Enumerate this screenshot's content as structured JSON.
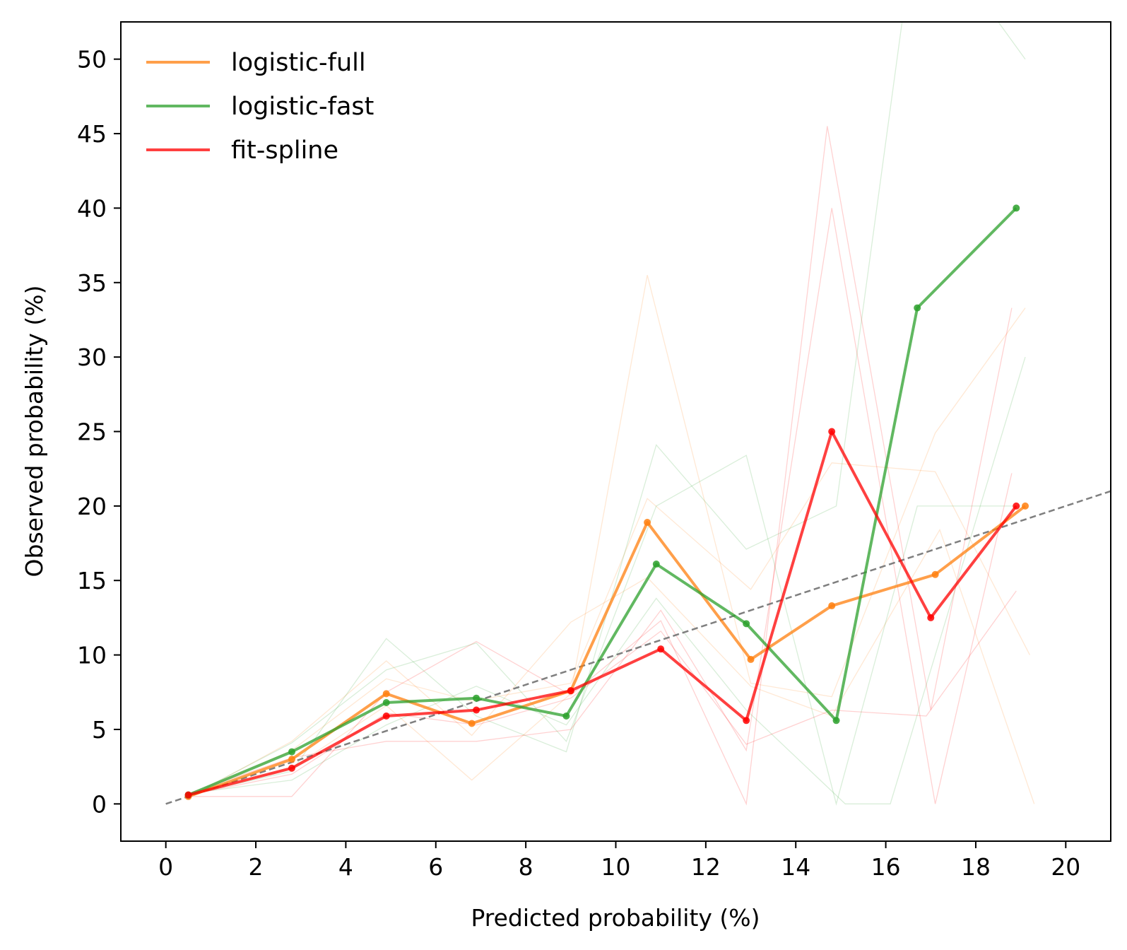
{
  "chart_data": {
    "type": "line",
    "xlabel": "Predicted probability (%)",
    "ylabel": "Observed probability (%)",
    "xlim": [
      -1,
      21
    ],
    "ylim": [
      -2.5,
      52.5
    ],
    "xticks": [
      0,
      2,
      4,
      6,
      8,
      10,
      12,
      14,
      16,
      18,
      20
    ],
    "yticks": [
      0,
      5,
      10,
      15,
      20,
      25,
      30,
      35,
      40,
      45,
      50
    ],
    "legend_position": "top-left",
    "reference_line": {
      "style": "dashed",
      "color": "#7f7f7f",
      "x": [
        0,
        21
      ],
      "y": [
        0,
        21
      ]
    },
    "series": [
      {
        "name": "logistic-full",
        "color": "#ff7f0e",
        "x": [
          0.5,
          2.8,
          4.9,
          6.8,
          9.0,
          10.7,
          13.0,
          14.8,
          17.1,
          19.1
        ],
        "y": [
          0.5,
          3.0,
          7.4,
          5.4,
          7.6,
          18.9,
          9.7,
          13.3,
          15.4,
          20.0
        ]
      },
      {
        "name": "logistic-fast",
        "color": "#2ca02c",
        "x": [
          0.5,
          2.8,
          4.9,
          6.9,
          8.9,
          10.9,
          12.9,
          14.9,
          16.7,
          18.9
        ],
        "y": [
          0.6,
          3.5,
          6.8,
          7.1,
          5.9,
          16.1,
          12.1,
          5.6,
          33.3,
          40.0
        ]
      },
      {
        "name": "fit-spline",
        "color": "#ff0000",
        "x": [
          0.5,
          2.8,
          4.9,
          6.9,
          9.0,
          11.0,
          12.9,
          14.8,
          17.0,
          18.9
        ],
        "y": [
          0.6,
          2.4,
          5.9,
          6.3,
          7.6,
          10.4,
          5.6,
          25.0,
          12.5,
          20.0
        ]
      }
    ],
    "background_series": [
      {
        "color": "#ff7f0e",
        "x": [
          0.5,
          2.8,
          4.9,
          6.8,
          9.0,
          10.7,
          13.0,
          14.8,
          17.1,
          19.2
        ],
        "y": [
          0.5,
          3.6,
          8.4,
          6.9,
          8.1,
          20.5,
          14.4,
          22.9,
          22.3,
          10.0
        ]
      },
      {
        "color": "#ff7f0e",
        "x": [
          0.5,
          2.8,
          4.9,
          6.8,
          9.0,
          10.7,
          13.0,
          14.8,
          17.1,
          19.1
        ],
        "y": [
          0.6,
          2.4,
          6.6,
          1.6,
          7.4,
          35.5,
          8.1,
          7.2,
          24.9,
          33.3
        ]
      },
      {
        "color": "#ff7f0e",
        "x": [
          0.5,
          2.8,
          4.9,
          6.8,
          9.0,
          10.7,
          13.0,
          14.8,
          17.2,
          19.3
        ],
        "y": [
          0.4,
          4.2,
          9.6,
          4.6,
          12.2,
          15.2,
          7.9,
          5.9,
          18.4,
          0.0
        ]
      },
      {
        "color": "#2ca02c",
        "x": [
          0.5,
          2.8,
          4.9,
          6.9,
          8.9,
          10.9,
          12.9,
          14.9,
          16.7,
          19.1
        ],
        "y": [
          0.6,
          2.2,
          11.1,
          5.9,
          3.5,
          24.1,
          17.1,
          20.0,
          60.0,
          50.0
        ]
      },
      {
        "color": "#2ca02c",
        "x": [
          0.5,
          2.8,
          4.9,
          6.9,
          8.9,
          10.9,
          12.9,
          14.9,
          16.7,
          19.0
        ],
        "y": [
          0.5,
          4.1,
          9.0,
          10.8,
          4.2,
          20.0,
          23.4,
          0.0,
          20.0,
          20.0
        ]
      },
      {
        "color": "#2ca02c",
        "x": [
          0.5,
          2.8,
          4.9,
          6.9,
          8.9,
          10.9,
          12.9,
          15.1,
          16.1,
          19.1
        ],
        "y": [
          0.7,
          1.6,
          5.3,
          7.9,
          5.3,
          13.8,
          6.3,
          0.0,
          0.0,
          30.0
        ]
      },
      {
        "color": "#ff0000",
        "x": [
          0.5,
          2.8,
          4.9,
          6.9,
          9.0,
          11.0,
          12.9,
          14.7,
          17.0,
          18.8
        ],
        "y": [
          0.5,
          0.5,
          7.5,
          10.9,
          7.3,
          12.3,
          0.0,
          45.5,
          6.3,
          33.3
        ]
      },
      {
        "color": "#ff0000",
        "x": [
          0.5,
          2.8,
          4.9,
          6.9,
          9.0,
          11.0,
          12.9,
          14.8,
          17.1,
          18.8
        ],
        "y": [
          0.7,
          3.1,
          4.2,
          4.2,
          5.0,
          13.0,
          3.6,
          40.0,
          0.0,
          22.2
        ]
      },
      {
        "color": "#ff0000",
        "x": [
          0.5,
          2.8,
          4.9,
          6.9,
          9.0,
          11.0,
          12.9,
          14.8,
          16.9,
          18.9
        ],
        "y": [
          0.6,
          2.0,
          6.1,
          5.3,
          7.1,
          11.6,
          4.0,
          6.3,
          5.9,
          14.3
        ]
      }
    ]
  }
}
